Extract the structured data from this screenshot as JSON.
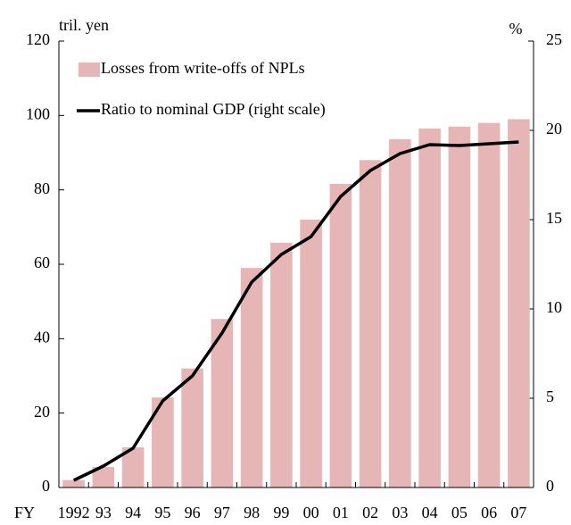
{
  "chart_data": {
    "type": "combo",
    "y_label": "tril. yen",
    "y2_label": "%",
    "x_label": "FY",
    "categories": [
      "1992",
      "93",
      "94",
      "95",
      "96",
      "97",
      "98",
      "99",
      "00",
      "01",
      "02",
      "03",
      "04",
      "05",
      "06",
      "07"
    ],
    "series": [
      {
        "name": "Losses from write-offs of NPLs",
        "type": "bar",
        "color": "#e6b5b5",
        "values": [
          2,
          5.5,
          10.8,
          24.2,
          32,
          45.3,
          59,
          65.8,
          72,
          81.6,
          88,
          93.6,
          96.5,
          97,
          98,
          99
        ]
      },
      {
        "name": "Ratio to nominal GDP (right scale)",
        "type": "line",
        "axis": "y2",
        "color": "#000000",
        "values": [
          0.4,
          1.2,
          2.2,
          4.85,
          6.25,
          8.65,
          11.5,
          13.05,
          14.05,
          16.3,
          17.75,
          18.7,
          19.2,
          19.15,
          19.25,
          19.35
        ]
      }
    ],
    "ylim": [
      0,
      120
    ],
    "yticks": [
      0,
      20,
      40,
      60,
      80,
      100,
      120
    ],
    "y2lim": [
      0,
      25
    ],
    "y2ticks": [
      0,
      5,
      10,
      15,
      20,
      25
    ]
  }
}
